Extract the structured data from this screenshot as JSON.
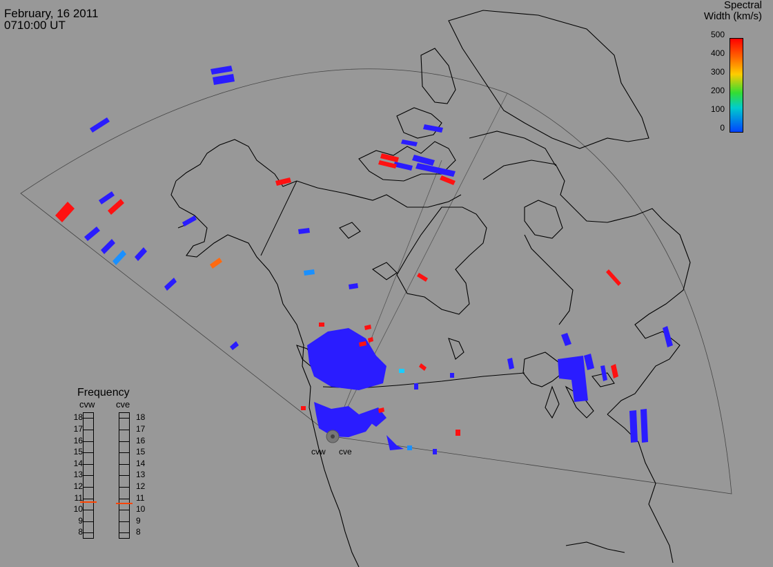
{
  "header": {
    "date": "February, 16 2011",
    "time": "0710:00 UT"
  },
  "colorbar": {
    "title_line1": "Spectral",
    "title_line2": "Width (km/s)",
    "ticks": [
      "500",
      "400",
      "300",
      "200",
      "100",
      "0"
    ],
    "colors": [
      "#ff0000",
      "#ff6600",
      "#ffcc00",
      "#33dd33",
      "#00cccc",
      "#0044ff"
    ]
  },
  "frequency_panel": {
    "title": "Frequency",
    "radar_labels": [
      "cvw",
      "cve"
    ],
    "scale": [
      "18",
      "17",
      "16",
      "15",
      "14",
      "13",
      "12",
      "11",
      "10",
      "9",
      "8"
    ],
    "cvw_value": 10.7,
    "cve_value": 10.6,
    "marker_color": "#ff4400"
  },
  "radar_sites": [
    "cvw",
    "cve"
  ],
  "scatter_colors": {
    "low": "#2a1cff",
    "high": "#ff1111",
    "mid": "#ff6a10",
    "cyan": "#1a90ff"
  }
}
